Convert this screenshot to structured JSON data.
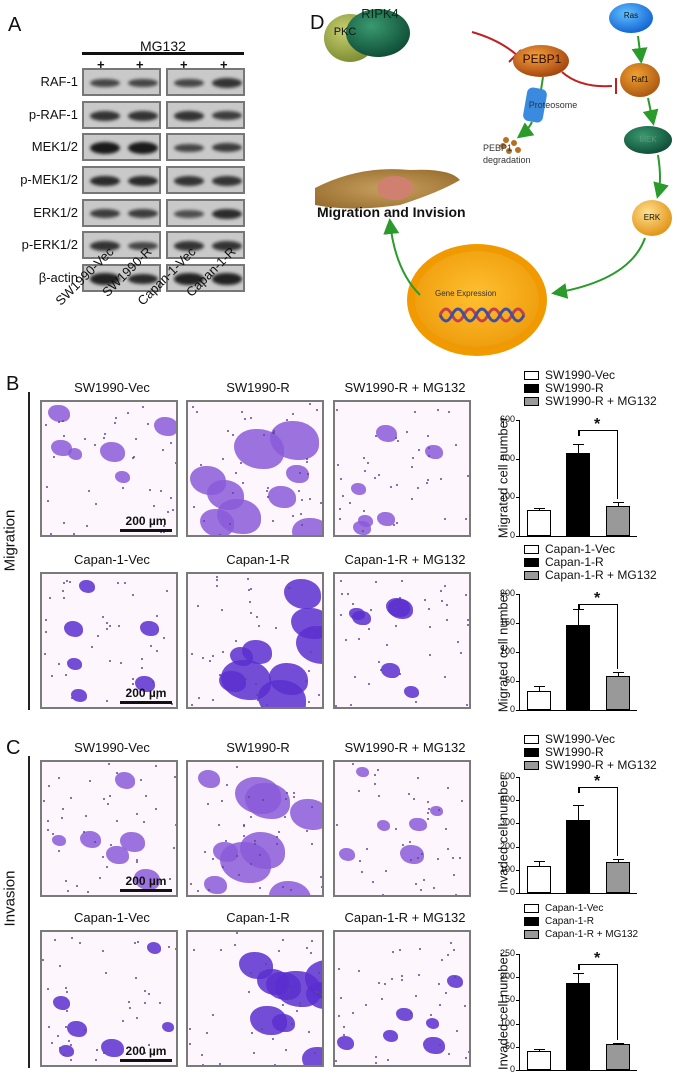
{
  "panels": {
    "a": {
      "letter": "A"
    },
    "b": {
      "letter": "B",
      "side_label": "Migration"
    },
    "c": {
      "letter": "C",
      "side_label": "Invasion"
    },
    "d": {
      "letter": "D"
    }
  },
  "western_blot": {
    "treatment_label": "MG132",
    "plus_marks": [
      "+",
      "+",
      "+",
      "+"
    ],
    "rows": [
      "RAF-1",
      "p-RAF-1",
      "MEK1/2",
      "p-MEK1/2",
      "ERK1/2",
      "p-ERK1/2",
      "β-actin"
    ],
    "lanes": [
      "SW1990-Vec",
      "SW1990-R",
      "Capan-1-Vec",
      "Capan-1-R"
    ]
  },
  "pathway": {
    "nodes": {
      "pkc": "PKC",
      "ripk4": "RIPK4",
      "pebp1": "PEBP1",
      "ras": "Ras",
      "raf1": "Raf1",
      "mek": "MEK",
      "erk": "ERK",
      "proteasome": "Proteosome",
      "degradation_1": "PEBP1",
      "degradation_2": "degradation",
      "gene_expression": "Gene Expression",
      "outcome": "Migration and Invision"
    }
  },
  "micrographs": {
    "scale_bar": "200 µm",
    "migration_sw1990": [
      "SW1990-Vec",
      "SW1990-R",
      "SW1990-R + MG132"
    ],
    "migration_capan": [
      "Capan-1-Vec",
      "Capan-1-R",
      "Capan-1-R + MG132"
    ],
    "invasion_sw1990": [
      "SW1990-Vec",
      "SW1990-R",
      "SW1990-R + MG132"
    ],
    "invasion_capan": [
      "Capan-1-Vec",
      "Capan-1-R",
      "Capan-1-R + MG132"
    ]
  },
  "colors": {
    "bar_vec": "#ffffff",
    "bar_r": "#000000",
    "bar_mg132": "#999999",
    "stain": "#6a3fd0"
  },
  "chart_data": [
    {
      "type": "bar",
      "title": "",
      "ylabel": "Migrated cell number",
      "categories": [
        "SW1990-Vec",
        "SW1990-R",
        "SW1990-R + MG132"
      ],
      "values": [
        135,
        430,
        155
      ],
      "errors": [
        8,
        48,
        22
      ],
      "ylim": [
        0,
        600
      ],
      "yticks": [
        "0",
        "200",
        "400",
        "600"
      ],
      "significance": "*",
      "legend": [
        "SW1990-Vec",
        "SW1990-R",
        "SW1990-R + MG132"
      ]
    },
    {
      "type": "bar",
      "title": "",
      "ylabel": "Migrated cell number",
      "categories": [
        "Capan-1-Vec",
        "Capan-1-R",
        "Capan-1-R + MG132"
      ],
      "values": [
        33,
        146,
        58
      ],
      "errors": [
        9,
        28,
        8
      ],
      "ylim": [
        0,
        200
      ],
      "yticks": [
        "0",
        "50",
        "100",
        "150",
        "200"
      ],
      "significance": "*",
      "legend": [
        "Capan-1-Vec",
        "Capan-1-R",
        "Capan-1-R + MG132"
      ]
    },
    {
      "type": "bar",
      "title": "",
      "ylabel": "Invaded cell number",
      "categories": [
        "SW1990-Vec",
        "SW1990-R",
        "SW1990-R + MG132"
      ],
      "values": [
        117,
        315,
        135
      ],
      "errors": [
        22,
        65,
        10
      ],
      "ylim": [
        0,
        500
      ],
      "yticks": [
        "0",
        "100",
        "200",
        "300",
        "400",
        "500"
      ],
      "significance": "*",
      "legend": [
        "SW1990-Vec",
        "SW1990-R",
        "SW1990-R + MG132"
      ]
    },
    {
      "type": "bar",
      "title": "",
      "ylabel": "Invaded cell number",
      "categories": [
        "Capan-1-Vec",
        "Capan-1-R",
        "Capan-1-R + MG132"
      ],
      "values": [
        40,
        187,
        55
      ],
      "errors": [
        5,
        23,
        4
      ],
      "ylim": [
        0,
        250
      ],
      "yticks": [
        "0",
        "50",
        "100",
        "150",
        "200",
        "250"
      ],
      "significance": "*",
      "legend": [
        "Capan-1-Vec",
        "Capan-1-R",
        "Capan-1-R + MG132"
      ]
    }
  ]
}
